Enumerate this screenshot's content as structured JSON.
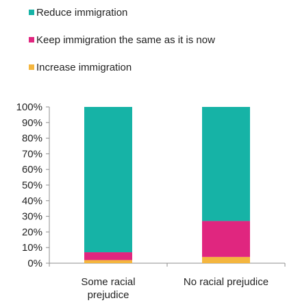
{
  "chart_data": {
    "type": "bar",
    "stacked": true,
    "title": "",
    "xlabel": "",
    "ylabel": "",
    "ylim": [
      0,
      100
    ],
    "y_ticks": [
      "0%",
      "10%",
      "20%",
      "30%",
      "40%",
      "50%",
      "60%",
      "70%",
      "80%",
      "90%",
      "100%"
    ],
    "categories": [
      {
        "lines": [
          "Some racial",
          "prejudice"
        ]
      },
      {
        "lines": [
          "No racial prejudice"
        ]
      }
    ],
    "series": [
      {
        "name": "Increase immigration",
        "color": "#F4B63F",
        "values": [
          2,
          4
        ]
      },
      {
        "name": "Keep immigration the same as it is now",
        "color": "#E0267F",
        "values": [
          5,
          23
        ]
      },
      {
        "name": "Reduce immigration",
        "color": "#16B3A6",
        "values": [
          93,
          73
        ]
      }
    ],
    "legend": {
      "placement": "top-left",
      "order": [
        "Reduce immigration",
        "Keep immigration the same as it is now",
        "Increase immigration"
      ]
    },
    "grid": false
  }
}
